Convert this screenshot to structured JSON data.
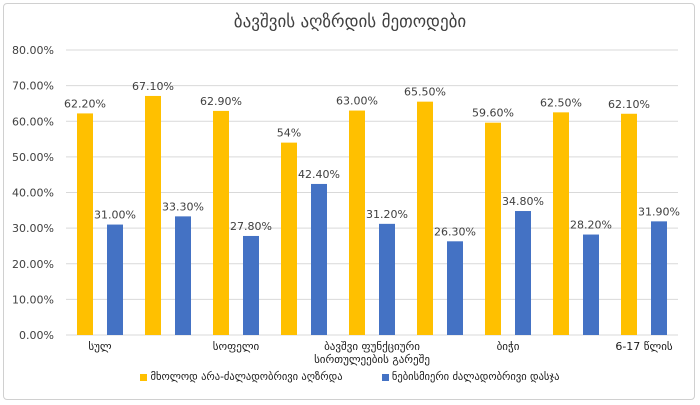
{
  "chart_data": {
    "type": "bar",
    "title": "ბავშვის აღზრდის მეთოდები",
    "xlabel": "",
    "ylabel": "",
    "ylim": [
      0,
      80
    ],
    "yticks": [
      "0.00%",
      "10.00%",
      "20.00%",
      "30.00%",
      "40.00%",
      "50.00%",
      "60.00%",
      "70.00%",
      "80.00%"
    ],
    "grid": true,
    "legend_position": "bottom",
    "categories": [
      "სულ",
      "",
      "სოფელი",
      "",
      "ბავშვი ფუნქციური სირთულეების გარეშე",
      "",
      "ბიჭი",
      "",
      "6-17 წლის"
    ],
    "category_label_lines": [
      [
        "სულ"
      ],
      [
        ""
      ],
      [
        "სოფელი"
      ],
      [
        ""
      ],
      [
        "ბავშვი ფუნქციური",
        "სირთულეების გარეშე"
      ],
      [
        ""
      ],
      [
        "ბიჭი"
      ],
      [
        ""
      ],
      [
        "6-17 წლის"
      ]
    ],
    "series": [
      {
        "name": "მხოლოდ არა-ძალადობრივი აღზრდა",
        "color": "#FFC000",
        "values": [
          62.2,
          67.1,
          62.9,
          54.0,
          63.0,
          65.5,
          59.6,
          62.5,
          62.1
        ],
        "labels": [
          "62.20%",
          "67.10%",
          "62.90%",
          "54%",
          "63.00%",
          "65.50%",
          "59.60%",
          "62.50%",
          "62.10%"
        ]
      },
      {
        "name": "ნებისმიერი ძალადობრივი დასჯა",
        "color": "#4472C4",
        "values": [
          31.0,
          33.3,
          27.8,
          42.4,
          31.2,
          26.3,
          34.8,
          28.2,
          31.9
        ],
        "labels": [
          "31.00%",
          "33.30%",
          "27.80%",
          "42.40%",
          "31.20%",
          "26.30%",
          "34.80%",
          "28.20%",
          "31.90%"
        ]
      }
    ]
  }
}
